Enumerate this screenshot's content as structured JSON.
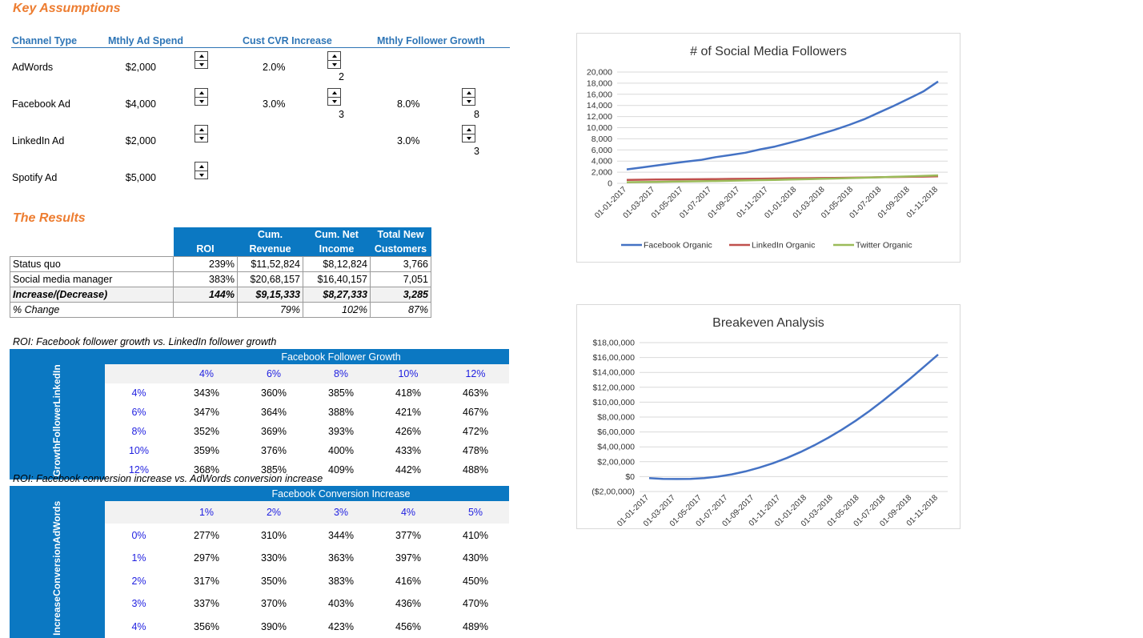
{
  "assumptions": {
    "title": "Key Assumptions",
    "headers": [
      "Channel Type",
      "Mthly Ad Spend",
      "Cust CVR Increase",
      "Mthly Follower Growth"
    ],
    "rows": [
      {
        "channel": "AdWords",
        "spend": "$2,000",
        "cvr": "2.0%",
        "cvr_spin": "2",
        "growth": "",
        "growth_spin": ""
      },
      {
        "channel": "Facebook Ad",
        "spend": "$4,000",
        "cvr": "3.0%",
        "cvr_spin": "3",
        "growth": "8.0%",
        "growth_spin": "8"
      },
      {
        "channel": "LinkedIn Ad",
        "spend": "$2,000",
        "cvr": "",
        "cvr_spin": "",
        "growth": "3.0%",
        "growth_spin": "3"
      },
      {
        "channel": "Spotify Ad",
        "spend": "$5,000",
        "cvr": "",
        "cvr_spin": "",
        "growth": "",
        "growth_spin": ""
      }
    ]
  },
  "results": {
    "title": "The Results",
    "headers": [
      [
        "ROI",
        ""
      ],
      [
        "Cum.",
        "Revenue"
      ],
      [
        "Cum. Net",
        "Income"
      ],
      [
        "Total New",
        "Customers"
      ]
    ],
    "rows": [
      {
        "label": "Status quo",
        "roi": "239%",
        "rev": "$11,52,824",
        "net": "$8,12,824",
        "cust": "3,766"
      },
      {
        "label": "Social media manager",
        "roi": "383%",
        "rev": "$20,68,157",
        "net": "$16,40,157",
        "cust": "7,051"
      },
      {
        "label": "Increase/(Decrease)",
        "roi": "144%",
        "rev": "$9,15,333",
        "net": "$8,27,333",
        "cust": "3,285"
      },
      {
        "label": "% Change",
        "roi": "",
        "rev": "79%",
        "net": "102%",
        "cust": "87%"
      }
    ]
  },
  "sens1": {
    "title": "ROI: Facebook follower growth vs. LinkedIn follower growth",
    "col_header": "Facebook Follower Growth",
    "row_header": [
      "LinkedIn",
      "Follower",
      "Growth"
    ],
    "cols": [
      "4%",
      "6%",
      "8%",
      "10%",
      "12%"
    ],
    "rows": [
      "4%",
      "6%",
      "8%",
      "10%",
      "12%"
    ],
    "values": [
      [
        "343%",
        "360%",
        "385%",
        "418%",
        "463%"
      ],
      [
        "347%",
        "364%",
        "388%",
        "421%",
        "467%"
      ],
      [
        "352%",
        "369%",
        "393%",
        "426%",
        "472%"
      ],
      [
        "359%",
        "376%",
        "400%",
        "433%",
        "478%"
      ],
      [
        "368%",
        "385%",
        "409%",
        "442%",
        "488%"
      ]
    ]
  },
  "sens2": {
    "title": "ROI: Facebook conversion increase vs. AdWords conversion increase",
    "col_header": "Facebook Conversion Increase",
    "row_header": [
      "AdWords",
      "Conversion",
      "Increase"
    ],
    "cols": [
      "1%",
      "2%",
      "3%",
      "4%",
      "5%"
    ],
    "rows": [
      "0%",
      "1%",
      "2%",
      "3%",
      "4%"
    ],
    "values": [
      [
        "277%",
        "310%",
        "344%",
        "377%",
        "410%"
      ],
      [
        "297%",
        "330%",
        "363%",
        "397%",
        "430%"
      ],
      [
        "317%",
        "350%",
        "383%",
        "416%",
        "450%"
      ],
      [
        "337%",
        "370%",
        "403%",
        "436%",
        "470%"
      ],
      [
        "356%",
        "390%",
        "423%",
        "456%",
        "489%"
      ]
    ]
  },
  "chart_data": [
    {
      "type": "line",
      "title": "# of Social Media Followers",
      "ylim": [
        0,
        20000
      ],
      "yticks": [
        "20,000",
        "18,000",
        "16,000",
        "14,000",
        "12,000",
        "10,000",
        "8,000",
        "6,000",
        "4,000",
        "2,000",
        "0"
      ],
      "xticks": [
        "01-01-2017",
        "01-03-2017",
        "01-05-2017",
        "01-07-2017",
        "01-09-2017",
        "01-11-2017",
        "01-01-2018",
        "01-03-2018",
        "01-05-2018",
        "01-07-2018",
        "01-09-2018",
        "01-11-2018"
      ],
      "legend": "bottom",
      "series": [
        {
          "name": "Facebook Organic",
          "color": "#4472C4",
          "values": [
            2500,
            2850,
            3200,
            3550,
            3900,
            4200,
            4700,
            5100,
            5500,
            6100,
            6600,
            7300,
            8000,
            8800,
            9600,
            10500,
            11500,
            12700,
            13900,
            15200,
            16500,
            18300
          ]
        },
        {
          "name": "LinkedIn Organic",
          "color": "#C0504D",
          "values": [
            600,
            650,
            680,
            700,
            720,
            740,
            760,
            790,
            810,
            840,
            860,
            890,
            920,
            950,
            980,
            1010,
            1050,
            1090,
            1130,
            1170,
            1210,
            1260
          ]
        },
        {
          "name": "Twitter Organic",
          "color": "#9BBB59",
          "values": [
            200,
            230,
            260,
            300,
            340,
            380,
            420,
            470,
            520,
            570,
            620,
            680,
            740,
            800,
            870,
            940,
            1010,
            1080,
            1160,
            1240,
            1330,
            1420
          ]
        }
      ]
    },
    {
      "type": "line",
      "title": "Breakeven Analysis",
      "ylim": [
        -200000,
        1800000
      ],
      "yticks": [
        "$18,00,000",
        "$16,00,000",
        "$14,00,000",
        "$12,00,000",
        "$10,00,000",
        "$8,00,000",
        "$6,00,000",
        "$4,00,000",
        "$2,00,000",
        "$0",
        "($2,00,000)"
      ],
      "xticks": [
        "01-01-2017",
        "01-03-2017",
        "01-05-2017",
        "01-07-2017",
        "01-09-2017",
        "01-11-2017",
        "01-01-2018",
        "01-03-2018",
        "01-05-2018",
        "01-07-2018",
        "01-09-2018",
        "01-11-2018"
      ],
      "series": [
        {
          "name": "",
          "color": "#4472C4",
          "values": [
            -20000,
            -30000,
            -32000,
            -30000,
            -20000,
            0,
            30000,
            70000,
            120000,
            180000,
            250000,
            330000,
            420000,
            520000,
            630000,
            750000,
            880000,
            1020000,
            1170000,
            1320000,
            1480000,
            1640000
          ]
        }
      ]
    }
  ]
}
